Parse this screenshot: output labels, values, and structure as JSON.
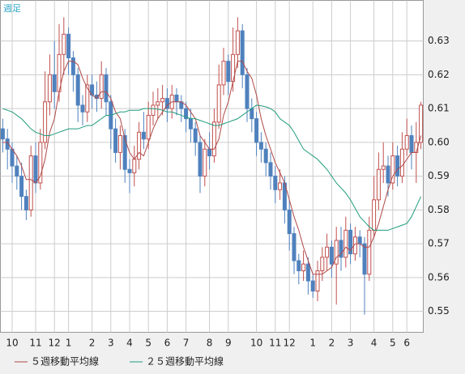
{
  "chart_data": {
    "type": "candlestick",
    "title": "週足",
    "categories": [
      null,
      null,
      "10",
      null,
      null,
      null,
      null,
      "11",
      null,
      null,
      null,
      "12",
      null,
      null,
      "1",
      null,
      null,
      null,
      null,
      "2",
      null,
      null,
      null,
      "3",
      null,
      null,
      null,
      "4",
      null,
      null,
      null,
      "5",
      null,
      null,
      null,
      "6",
      null,
      null,
      null,
      "7",
      null,
      null,
      null,
      null,
      "8",
      null,
      null,
      null,
      "9",
      null,
      null,
      null,
      null,
      null,
      "10",
      null,
      null,
      null,
      "11",
      null,
      null,
      "12",
      null,
      null,
      null,
      null,
      "1",
      null,
      null,
      null,
      "2",
      null,
      null,
      null,
      "3",
      null,
      null,
      null,
      null,
      "4",
      null,
      null,
      null,
      "5",
      null,
      null,
      "6",
      null,
      null,
      null
    ],
    "open": [
      0.604,
      0.601,
      0.598,
      0.593,
      0.59,
      0.584,
      0.58,
      0.596,
      0.588,
      0.6,
      0.612,
      0.62,
      0.615,
      0.626,
      0.632,
      0.625,
      0.62,
      0.611,
      0.609,
      0.617,
      0.614,
      0.613,
      0.62,
      0.612,
      0.604,
      0.597,
      0.602,
      0.592,
      0.591,
      0.595,
      0.603,
      0.601,
      0.608,
      0.611,
      0.612,
      0.613,
      0.61,
      0.614,
      0.612,
      0.61,
      0.607,
      0.604,
      0.6,
      0.59,
      0.598,
      0.596,
      0.606,
      0.617,
      0.624,
      0.618,
      0.626,
      0.633,
      0.62,
      0.61,
      0.607,
      0.6,
      0.598,
      0.594,
      0.59,
      0.586,
      0.588,
      0.58,
      0.573,
      0.565,
      0.562,
      0.564,
      0.559,
      0.556,
      0.562,
      0.566,
      0.569,
      0.564,
      0.571,
      0.566,
      0.574,
      0.567,
      0.572,
      0.57,
      0.561,
      0.574,
      0.583,
      0.592,
      0.593,
      0.588,
      0.596,
      0.59,
      0.598,
      0.602,
      0.597,
      0.6
    ],
    "high": [
      0.607,
      0.604,
      0.6,
      0.596,
      0.594,
      0.586,
      0.599,
      0.6,
      0.604,
      0.621,
      0.626,
      0.63,
      0.635,
      0.637,
      0.634,
      0.627,
      0.622,
      0.614,
      0.62,
      0.62,
      0.618,
      0.624,
      0.622,
      0.614,
      0.607,
      0.605,
      0.604,
      0.595,
      0.599,
      0.606,
      0.609,
      0.612,
      0.615,
      0.616,
      0.617,
      0.616,
      0.617,
      0.616,
      0.614,
      0.612,
      0.61,
      0.606,
      0.602,
      0.601,
      0.603,
      0.61,
      0.623,
      0.628,
      0.626,
      0.634,
      0.637,
      0.635,
      0.622,
      0.613,
      0.609,
      0.603,
      0.6,
      0.597,
      0.593,
      0.592,
      0.59,
      0.583,
      0.575,
      0.567,
      0.568,
      0.566,
      0.561,
      0.565,
      0.569,
      0.573,
      0.571,
      0.575,
      0.575,
      0.578,
      0.576,
      0.575,
      0.574,
      0.572,
      0.578,
      0.59,
      0.597,
      0.6,
      0.596,
      0.6,
      0.599,
      0.603,
      0.607,
      0.605,
      0.606,
      0.612
    ],
    "low": [
      0.597,
      0.592,
      0.588,
      0.586,
      0.58,
      0.577,
      0.578,
      0.585,
      0.586,
      0.598,
      0.608,
      0.61,
      0.612,
      0.62,
      0.62,
      0.615,
      0.606,
      0.605,
      0.606,
      0.61,
      0.609,
      0.61,
      0.608,
      0.598,
      0.594,
      0.592,
      0.588,
      0.585,
      0.587,
      0.592,
      0.598,
      0.598,
      0.605,
      0.607,
      0.608,
      0.606,
      0.607,
      0.608,
      0.606,
      0.603,
      0.6,
      0.596,
      0.585,
      0.587,
      0.592,
      0.594,
      0.604,
      0.614,
      0.614,
      0.615,
      0.622,
      0.616,
      0.606,
      0.603,
      0.596,
      0.594,
      0.59,
      0.586,
      0.582,
      0.583,
      0.576,
      0.568,
      0.561,
      0.558,
      0.559,
      0.555,
      0.554,
      0.553,
      0.559,
      0.562,
      0.56,
      0.552,
      0.562,
      0.563,
      0.564,
      0.565,
      0.566,
      0.549,
      0.559,
      0.572,
      0.58,
      0.588,
      0.584,
      0.586,
      0.587,
      0.588,
      0.596,
      0.592,
      0.588,
      0.598
    ],
    "close": [
      0.601,
      0.598,
      0.593,
      0.59,
      0.584,
      0.58,
      0.596,
      0.588,
      0.6,
      0.612,
      0.62,
      0.615,
      0.626,
      0.632,
      0.625,
      0.62,
      0.611,
      0.609,
      0.617,
      0.614,
      0.613,
      0.62,
      0.612,
      0.604,
      0.597,
      0.602,
      0.592,
      0.591,
      0.595,
      0.603,
      0.601,
      0.608,
      0.611,
      0.612,
      0.613,
      0.61,
      0.614,
      0.612,
      0.61,
      0.607,
      0.604,
      0.6,
      0.59,
      0.598,
      0.596,
      0.606,
      0.617,
      0.624,
      0.618,
      0.626,
      0.633,
      0.62,
      0.61,
      0.607,
      0.6,
      0.598,
      0.594,
      0.59,
      0.586,
      0.588,
      0.58,
      0.573,
      0.565,
      0.562,
      0.564,
      0.559,
      0.556,
      0.562,
      0.566,
      0.569,
      0.564,
      0.571,
      0.566,
      0.574,
      0.567,
      0.572,
      0.57,
      0.561,
      0.574,
      0.583,
      0.592,
      0.593,
      0.588,
      0.596,
      0.59,
      0.598,
      0.602,
      0.597,
      0.6,
      0.611
    ],
    "up_color": "#c0504d",
    "down_color": "#4f81bd",
    "series": [
      {
        "name": "５週移動平均線",
        "color": "#b04848",
        "values": [
          0.6,
          0.6,
          0.598,
          0.596,
          0.593,
          0.589,
          0.589,
          0.588,
          0.59,
          0.595,
          0.603,
          0.607,
          0.615,
          0.621,
          0.624,
          0.624,
          0.623,
          0.619,
          0.616,
          0.614,
          0.613,
          0.615,
          0.615,
          0.613,
          0.609,
          0.607,
          0.601,
          0.597,
          0.595,
          0.597,
          0.596,
          0.6,
          0.604,
          0.607,
          0.609,
          0.611,
          0.612,
          0.612,
          0.612,
          0.611,
          0.609,
          0.607,
          0.602,
          0.6,
          0.598,
          0.598,
          0.601,
          0.608,
          0.612,
          0.618,
          0.624,
          0.624,
          0.621,
          0.619,
          0.614,
          0.607,
          0.602,
          0.598,
          0.594,
          0.591,
          0.588,
          0.583,
          0.578,
          0.574,
          0.569,
          0.565,
          0.561,
          0.561,
          0.561,
          0.562,
          0.563,
          0.566,
          0.567,
          0.569,
          0.568,
          0.57,
          0.57,
          0.569,
          0.569,
          0.572,
          0.576,
          0.581,
          0.586,
          0.59,
          0.592,
          0.593,
          0.595,
          0.597,
          0.597,
          0.602
        ]
      },
      {
        "name": "２５週移動平均線",
        "color": "#1f9c7c",
        "values": [
          0.61,
          0.6095,
          0.609,
          0.608,
          0.607,
          0.6055,
          0.604,
          0.603,
          0.6025,
          0.602,
          0.602,
          0.6025,
          0.603,
          0.6035,
          0.604,
          0.604,
          0.604,
          0.6045,
          0.605,
          0.605,
          0.606,
          0.607,
          0.608,
          0.608,
          0.6085,
          0.609,
          0.609,
          0.6095,
          0.6095,
          0.6095,
          0.61,
          0.61,
          0.61,
          0.6098,
          0.6095,
          0.609,
          0.609,
          0.6085,
          0.608,
          0.6075,
          0.607,
          0.607,
          0.6065,
          0.606,
          0.6055,
          0.605,
          0.605,
          0.6055,
          0.606,
          0.6065,
          0.607,
          0.608,
          0.609,
          0.61,
          0.611,
          0.6108,
          0.6105,
          0.61,
          0.609,
          0.607,
          0.606,
          0.605,
          0.603,
          0.6005,
          0.598,
          0.597,
          0.596,
          0.595,
          0.5935,
          0.592,
          0.59,
          0.588,
          0.5865,
          0.585,
          0.583,
          0.5805,
          0.578,
          0.5765,
          0.575,
          0.574,
          0.574,
          0.574,
          0.574,
          0.5745,
          0.575,
          0.5755,
          0.576,
          0.578,
          0.581,
          0.584
        ]
      }
    ],
    "ylim": [
      0.5438,
      0.642
    ],
    "yticks": [
      0.55,
      0.56,
      0.57,
      0.58,
      0.59,
      {
        "value": 0.6,
        "label": "0.60"
      },
      0.61,
      0.62,
      0.63
    ],
    "grid": true
  }
}
